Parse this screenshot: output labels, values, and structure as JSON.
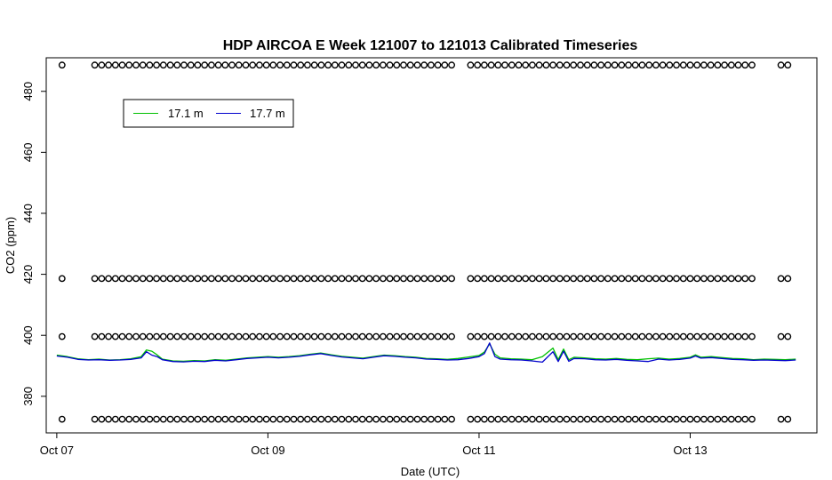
{
  "chart_data": {
    "type": "line",
    "title": "HDP AIRCOA E  Week 121007 to 121013  Calibrated Timeseries",
    "xlabel": "Date (UTC)",
    "ylabel": "CO2 (ppm)",
    "xlim": [
      -0.1,
      7.2
    ],
    "ylim": [
      368,
      491
    ],
    "x_ticks": [
      {
        "value": 0,
        "label": "Oct 07"
      },
      {
        "value": 2,
        "label": "Oct 09"
      },
      {
        "value": 4,
        "label": "Oct 11"
      },
      {
        "value": 6,
        "label": "Oct 13"
      }
    ],
    "y_ticks": [
      380,
      400,
      420,
      440,
      460,
      480
    ],
    "grid": false,
    "legend_position": "top-left",
    "series": [
      {
        "name": "17.1 m",
        "color": "#00c000",
        "x": [
          0.0,
          0.1,
          0.2,
          0.3,
          0.4,
          0.5,
          0.6,
          0.7,
          0.8,
          0.85,
          0.9,
          0.95,
          1.0,
          1.1,
          1.2,
          1.3,
          1.4,
          1.5,
          1.6,
          1.7,
          1.8,
          1.9,
          2.0,
          2.1,
          2.2,
          2.3,
          2.4,
          2.5,
          2.6,
          2.7,
          2.8,
          2.9,
          3.0,
          3.1,
          3.2,
          3.3,
          3.4,
          3.5,
          3.6,
          3.7,
          3.8,
          3.9,
          4.0,
          4.05,
          4.1,
          4.15,
          4.2,
          4.3,
          4.4,
          4.5,
          4.6,
          4.7,
          4.75,
          4.8,
          4.85,
          4.9,
          5.0,
          5.1,
          5.2,
          5.3,
          5.4,
          5.5,
          5.6,
          5.7,
          5.8,
          5.9,
          6.0,
          6.05,
          6.1,
          6.2,
          6.3,
          6.4,
          6.5,
          6.6,
          6.7,
          6.8,
          6.9,
          7.0
        ],
        "values": [
          393.5,
          393.0,
          392.3,
          392.0,
          392.2,
          391.9,
          392.0,
          392.3,
          393.0,
          395.2,
          394.8,
          393.6,
          392.2,
          391.6,
          391.5,
          391.7,
          391.6,
          392.0,
          391.8,
          392.2,
          392.6,
          392.8,
          393.0,
          392.8,
          393.0,
          393.3,
          393.8,
          394.2,
          393.6,
          393.1,
          392.8,
          392.5,
          393.0,
          393.5,
          393.3,
          393.0,
          392.8,
          392.4,
          392.3,
          392.1,
          392.4,
          392.9,
          393.4,
          394.5,
          397.2,
          393.8,
          392.6,
          392.3,
          392.2,
          392.0,
          393.0,
          395.8,
          392.0,
          395.5,
          392.0,
          392.8,
          392.6,
          392.3,
          392.2,
          392.4,
          392.1,
          392.0,
          392.3,
          392.5,
          392.2,
          392.4,
          392.8,
          393.6,
          392.8,
          393.0,
          392.7,
          392.4,
          392.3,
          392.0,
          392.2,
          392.1,
          392.0,
          392.2
        ]
      },
      {
        "name": "17.7 m",
        "color": "#0000cc",
        "x": [
          0.0,
          0.1,
          0.2,
          0.3,
          0.4,
          0.5,
          0.6,
          0.7,
          0.8,
          0.85,
          0.9,
          0.95,
          1.0,
          1.1,
          1.2,
          1.3,
          1.4,
          1.5,
          1.6,
          1.7,
          1.8,
          1.9,
          2.0,
          2.1,
          2.2,
          2.3,
          2.4,
          2.5,
          2.6,
          2.7,
          2.8,
          2.9,
          3.0,
          3.1,
          3.2,
          3.3,
          3.4,
          3.5,
          3.6,
          3.7,
          3.8,
          3.9,
          4.0,
          4.05,
          4.1,
          4.15,
          4.2,
          4.3,
          4.4,
          4.5,
          4.6,
          4.7,
          4.75,
          4.8,
          4.85,
          4.9,
          5.0,
          5.1,
          5.2,
          5.3,
          5.4,
          5.5,
          5.6,
          5.7,
          5.8,
          5.9,
          6.0,
          6.05,
          6.1,
          6.2,
          6.3,
          6.4,
          6.5,
          6.6,
          6.7,
          6.8,
          6.9,
          7.0
        ],
        "values": [
          393.2,
          392.8,
          392.1,
          391.9,
          392.0,
          391.8,
          391.9,
          392.1,
          392.6,
          394.6,
          393.5,
          393.0,
          392.0,
          391.4,
          391.3,
          391.5,
          391.4,
          391.8,
          391.6,
          392.0,
          392.4,
          392.6,
          392.8,
          392.6,
          392.8,
          393.1,
          393.6,
          394.0,
          393.4,
          392.9,
          392.6,
          392.3,
          392.8,
          393.3,
          393.1,
          392.8,
          392.6,
          392.2,
          392.1,
          391.9,
          392.0,
          392.4,
          393.0,
          394.0,
          397.5,
          393.0,
          392.2,
          392.0,
          391.9,
          391.6,
          391.2,
          394.6,
          391.4,
          394.8,
          391.5,
          392.4,
          392.3,
          392.0,
          391.9,
          392.1,
          391.8,
          391.6,
          391.4,
          392.2,
          391.9,
          392.1,
          392.5,
          393.2,
          392.5,
          392.7,
          392.4,
          392.1,
          392.0,
          391.8,
          391.9,
          391.8,
          391.7,
          391.9
        ]
      }
    ],
    "marker_series": {
      "symbol": "open-circle",
      "color": "#000000",
      "levels": [
        372.5,
        399.6,
        418.6,
        488.6
      ],
      "segments": [
        {
          "from": 0.05,
          "to": 0.1,
          "levels": [
            372.5,
            399.6,
            418.6,
            488.6
          ]
        },
        {
          "from": 0.36,
          "to": 3.78,
          "levels": [
            372.5,
            399.6,
            418.6,
            488.6
          ]
        },
        {
          "from": 3.92,
          "to": 6.6,
          "levels": [
            372.5,
            399.6,
            418.6,
            488.6
          ]
        },
        {
          "from": 6.86,
          "to": 6.98,
          "levels": [
            372.5,
            399.6,
            418.6,
            488.6
          ]
        }
      ],
      "step": 0.065
    }
  }
}
